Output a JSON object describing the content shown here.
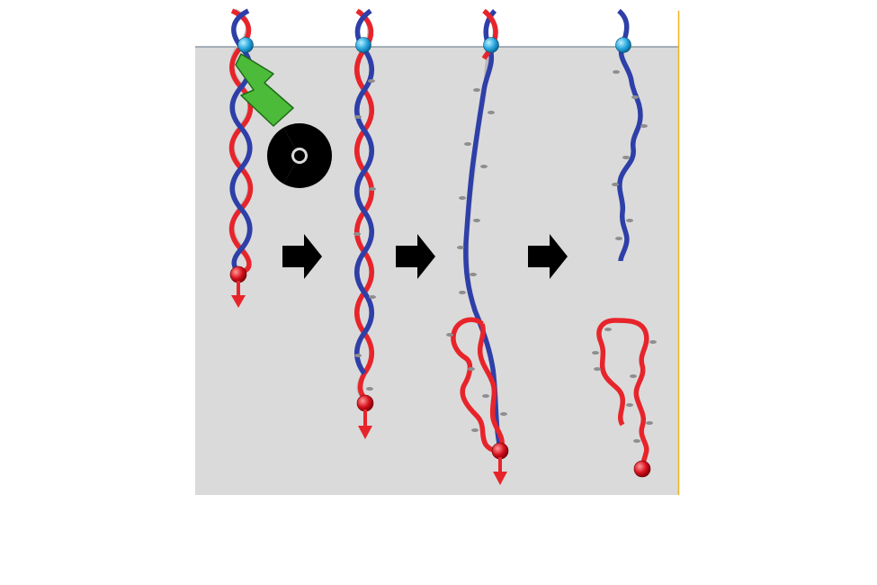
{
  "diagram": {
    "stages": [
      {
        "id": "stage-1",
        "state": "intact double-stranded DNA under tension",
        "irradiated": true
      },
      {
        "id": "stage-2",
        "state": "intact double-stranded DNA"
      },
      {
        "id": "stage-3",
        "state": "partially unwound DNA, strands separating"
      },
      {
        "id": "stage-4",
        "state": "fully separated strands"
      }
    ],
    "icons": [
      "radiation-icon",
      "lightning-bolt-icon",
      "arrow-right-icon",
      "force-arrow-icon",
      "tether-bead-icon",
      "end-bead-icon"
    ],
    "colors": {
      "background_panel": "#dadada",
      "surface_line": "#7a8a99",
      "right_edge": "#f2b320",
      "strand_red": "#e8242b",
      "strand_blue": "#2e3fa8",
      "backbone_gray": "#b9b9b9",
      "bead_blue": "#2aa9e0",
      "bead_red": "#d8121f",
      "bolt_green": "#4cbb3a",
      "arrow_black": "#000000"
    }
  }
}
